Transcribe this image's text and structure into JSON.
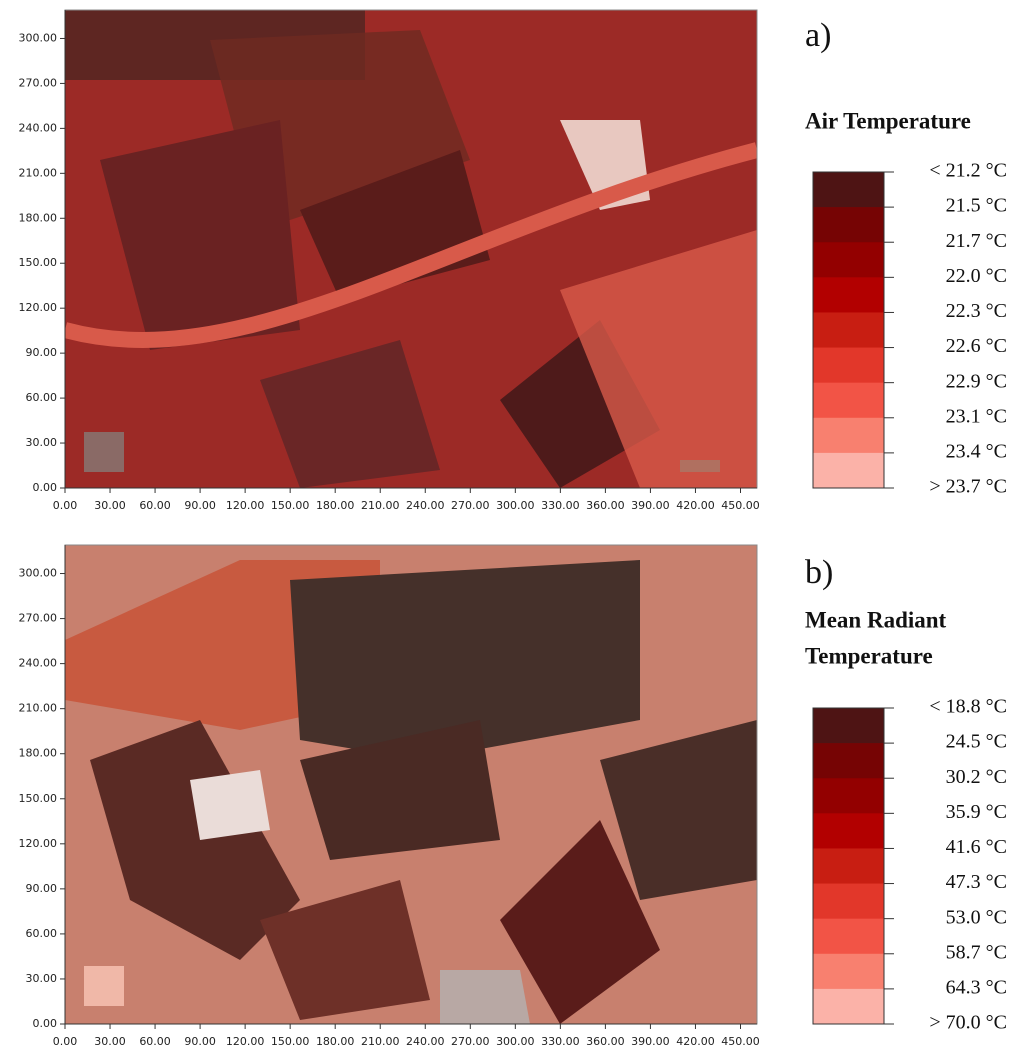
{
  "figure": {
    "panels": [
      {
        "label": "a)",
        "title_lines": [
          "Air Temperature"
        ],
        "xlim": [
          0,
          461
        ],
        "ylim": [
          0,
          319
        ],
        "xticks": [
          {
            "value": 0,
            "label": "0.00"
          },
          {
            "value": 30,
            "label": "30.00"
          },
          {
            "value": 60,
            "label": "60.00"
          },
          {
            "value": 90,
            "label": "90.00"
          },
          {
            "value": 120,
            "label": "120.00"
          },
          {
            "value": 150,
            "label": "150.00"
          },
          {
            "value": 180,
            "label": "180.00"
          },
          {
            "value": 210,
            "label": "210.00"
          },
          {
            "value": 240,
            "label": "240.00"
          },
          {
            "value": 270,
            "label": "270.00"
          },
          {
            "value": 300,
            "label": "300.00"
          },
          {
            "value": 330,
            "label": "330.00"
          },
          {
            "value": 360,
            "label": "360.00"
          },
          {
            "value": 390,
            "label": "390.00"
          },
          {
            "value": 420,
            "label": "420.00"
          },
          {
            "value": 450,
            "label": "450.00"
          }
        ],
        "yticks": [
          {
            "value": 0,
            "label": "0.00"
          },
          {
            "value": 30,
            "label": "30.00"
          },
          {
            "value": 60,
            "label": "60.00"
          },
          {
            "value": 90,
            "label": "90.00"
          },
          {
            "value": 120,
            "label": "120.00"
          },
          {
            "value": 150,
            "label": "150.00"
          },
          {
            "value": 180,
            "label": "180.00"
          },
          {
            "value": 210,
            "label": "210.00"
          },
          {
            "value": 240,
            "label": "240.00"
          },
          {
            "value": 270,
            "label": "270.00"
          },
          {
            "value": 300,
            "label": "300.00"
          }
        ],
        "legend": {
          "labels": [
            "< 21.2 °C",
            "21.5 °C",
            "21.7 °C",
            "22.0 °C",
            "22.3 °C",
            "22.6 °C",
            "22.9 °C",
            "23.1 °C",
            "23.4 °C",
            "> 23.7 °C"
          ],
          "colors": [
            "#4e1414",
            "#760404",
            "#930000",
            "#b20000",
            "#c81e12",
            "#e2372a",
            "#f25446",
            "#f8806f",
            "#fbb2a8"
          ]
        }
      },
      {
        "label": "b)",
        "title_lines": [
          "Mean Radiant",
          "Temperature"
        ],
        "xlim": [
          0,
          461
        ],
        "ylim": [
          0,
          319
        ],
        "xticks": [
          {
            "value": 0,
            "label": "0.00"
          },
          {
            "value": 30,
            "label": "30.00"
          },
          {
            "value": 60,
            "label": "60.00"
          },
          {
            "value": 90,
            "label": "90.00"
          },
          {
            "value": 120,
            "label": "120.00"
          },
          {
            "value": 150,
            "label": "150.00"
          },
          {
            "value": 180,
            "label": "180.00"
          },
          {
            "value": 210,
            "label": "210.00"
          },
          {
            "value": 240,
            "label": "240.00"
          },
          {
            "value": 270,
            "label": "270.00"
          },
          {
            "value": 300,
            "label": "300.00"
          },
          {
            "value": 330,
            "label": "330.00"
          },
          {
            "value": 360,
            "label": "360.00"
          },
          {
            "value": 390,
            "label": "390.00"
          },
          {
            "value": 420,
            "label": "420.00"
          },
          {
            "value": 450,
            "label": "450.00"
          }
        ],
        "yticks": [
          {
            "value": 0,
            "label": "0.00"
          },
          {
            "value": 30,
            "label": "30.00"
          },
          {
            "value": 60,
            "label": "60.00"
          },
          {
            "value": 90,
            "label": "90.00"
          },
          {
            "value": 120,
            "label": "120.00"
          },
          {
            "value": 150,
            "label": "150.00"
          },
          {
            "value": 180,
            "label": "180.00"
          },
          {
            "value": 210,
            "label": "210.00"
          },
          {
            "value": 240,
            "label": "240.00"
          },
          {
            "value": 270,
            "label": "270.00"
          },
          {
            "value": 300,
            "label": "300.00"
          }
        ],
        "legend": {
          "labels": [
            "< 18.8 °C",
            "24.5 °C",
            "30.2 °C",
            "35.9 °C",
            "41.6 °C",
            "47.3 °C",
            "53.0 °C",
            "58.7 °C",
            "64.3 °C",
            "> 70.0 °C"
          ],
          "colors": [
            "#4e1414",
            "#760404",
            "#930000",
            "#b20000",
            "#c81e12",
            "#e2372a",
            "#f25446",
            "#f8806f",
            "#fbb2a8"
          ]
        }
      }
    ]
  }
}
